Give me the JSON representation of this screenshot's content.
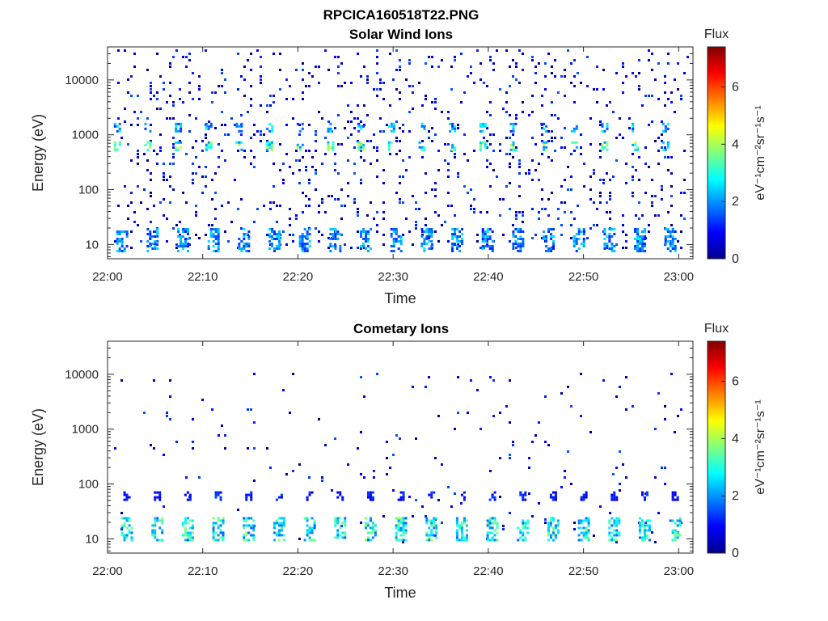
{
  "figure_title": "RPCICA160518T22.PNG",
  "colorbar": {
    "title": "Flux",
    "label": "eV⁻¹cm⁻²sr⁻¹s⁻¹",
    "ticks": [
      "0",
      "2",
      "4",
      "6"
    ],
    "range": [
      0,
      7.4
    ],
    "colormap": [
      "#00008f",
      "#0000ff",
      "#0080ff",
      "#00ffff",
      "#80ff80",
      "#ffff00",
      "#ff8000",
      "#ff0000",
      "#800000"
    ]
  },
  "chart_data": [
    {
      "type": "heatmap",
      "title": "Solar Wind Ions",
      "xlabel": "Time",
      "ylabel": "Energy (eV)",
      "x_ticks": [
        "22:00",
        "22:10",
        "22:20",
        "22:30",
        "22:40",
        "22:50",
        "23:00"
      ],
      "y_ticks": [
        "10",
        "100",
        "1000",
        "10000"
      ],
      "x_range_minutes": [
        0,
        61.5
      ],
      "y_range_eV": [
        5.5,
        40000
      ],
      "y_scale": "log",
      "color_range": [
        0,
        7.4
      ],
      "bands": [
        {
          "energy_eV": 620,
          "period_min": 3.2,
          "start_min": 1.0,
          "flux": 3.6
        },
        {
          "energy_eV": 1350,
          "period_min": 3.2,
          "start_min": 1.0,
          "flux": 2.4
        },
        {
          "energy_eV": 12,
          "period_min": 3.2,
          "start_min": 1.5,
          "flux": 2.2
        }
      ],
      "background": "sparse low flux (0–2) across 10–40000 eV"
    },
    {
      "type": "heatmap",
      "title": "Cometary Ions",
      "xlabel": "Time",
      "ylabel": "Energy (eV)",
      "x_ticks": [
        "22:00",
        "22:10",
        "22:20",
        "22:30",
        "22:40",
        "22:50",
        "23:00"
      ],
      "y_ticks": [
        "10",
        "100",
        "1000",
        "10000"
      ],
      "x_range_minutes": [
        0,
        61.5
      ],
      "y_range_eV": [
        5.5,
        40000
      ],
      "y_scale": "log",
      "color_range": [
        0,
        7.4
      ],
      "bands": [
        {
          "energy_eV": 15,
          "period_min": 3.2,
          "start_min": 2.0,
          "flux": 3.2
        },
        {
          "energy_eV": 60,
          "period_min": 3.2,
          "start_min": 2.0,
          "flux": 1.2
        }
      ],
      "background": "very sparse low flux (0–1.5) above 100 eV"
    }
  ]
}
